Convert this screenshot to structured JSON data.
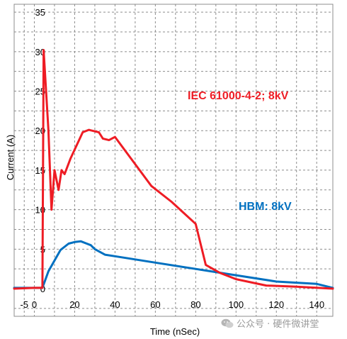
{
  "chart_data": {
    "type": "line",
    "xlabel": "Time (nSec)",
    "ylabel": "Current (A)",
    "xlim": [
      -10,
      148
    ],
    "ylim": [
      -3.5,
      36
    ],
    "x_ticks": [
      -5,
      0,
      20,
      40,
      60,
      80,
      100,
      120,
      140
    ],
    "x_tick_labels": [
      "-5",
      "0",
      "20",
      "40",
      "60",
      "80",
      "100",
      "120",
      "140"
    ],
    "y_ticks": [
      0,
      5,
      10,
      15,
      20,
      25,
      30,
      35
    ],
    "y_tick_labels": [
      "0",
      "5",
      "10",
      "15",
      "20",
      "25",
      "30",
      "35"
    ],
    "grid": true,
    "series": [
      {
        "name": "IEC 61000-4-2; 8kV",
        "color": "#ee1c24",
        "points": [
          [
            -10,
            0
          ],
          [
            0,
            0.1
          ],
          [
            4,
            0.1
          ],
          [
            4.6,
            30.2
          ],
          [
            7,
            20
          ],
          [
            8.5,
            10
          ],
          [
            10,
            15
          ],
          [
            12,
            12.5
          ],
          [
            13.5,
            15
          ],
          [
            15,
            14.5
          ],
          [
            18,
            16.5
          ],
          [
            24,
            19.8
          ],
          [
            27,
            20.1
          ],
          [
            32,
            19.8
          ],
          [
            34,
            19
          ],
          [
            37,
            18.8
          ],
          [
            40,
            19.2
          ],
          [
            58,
            13
          ],
          [
            68,
            11
          ],
          [
            80,
            8.2
          ],
          [
            85,
            3
          ],
          [
            92,
            2
          ],
          [
            100,
            1.2
          ],
          [
            115,
            0.4
          ],
          [
            130,
            0.25
          ],
          [
            148,
            0
          ]
        ]
      },
      {
        "name": "HBM: 8kV",
        "color": "#0070c0",
        "points": [
          [
            -10,
            0.1
          ],
          [
            0,
            0.1
          ],
          [
            4,
            0.1
          ],
          [
            7,
            2.2
          ],
          [
            13,
            4.9
          ],
          [
            17,
            5.7
          ],
          [
            20,
            5.9
          ],
          [
            23,
            6
          ],
          [
            26,
            5.7
          ],
          [
            28,
            5.5
          ],
          [
            30,
            5
          ],
          [
            35,
            4.3
          ],
          [
            40,
            4.1
          ],
          [
            60,
            3.3
          ],
          [
            80,
            2.5
          ],
          [
            100,
            1.7
          ],
          [
            120,
            0.9
          ],
          [
            140,
            0.6
          ],
          [
            148,
            0.1
          ]
        ]
      }
    ]
  },
  "watermark": {
    "text": "公众号 · 硬件微讲堂"
  }
}
